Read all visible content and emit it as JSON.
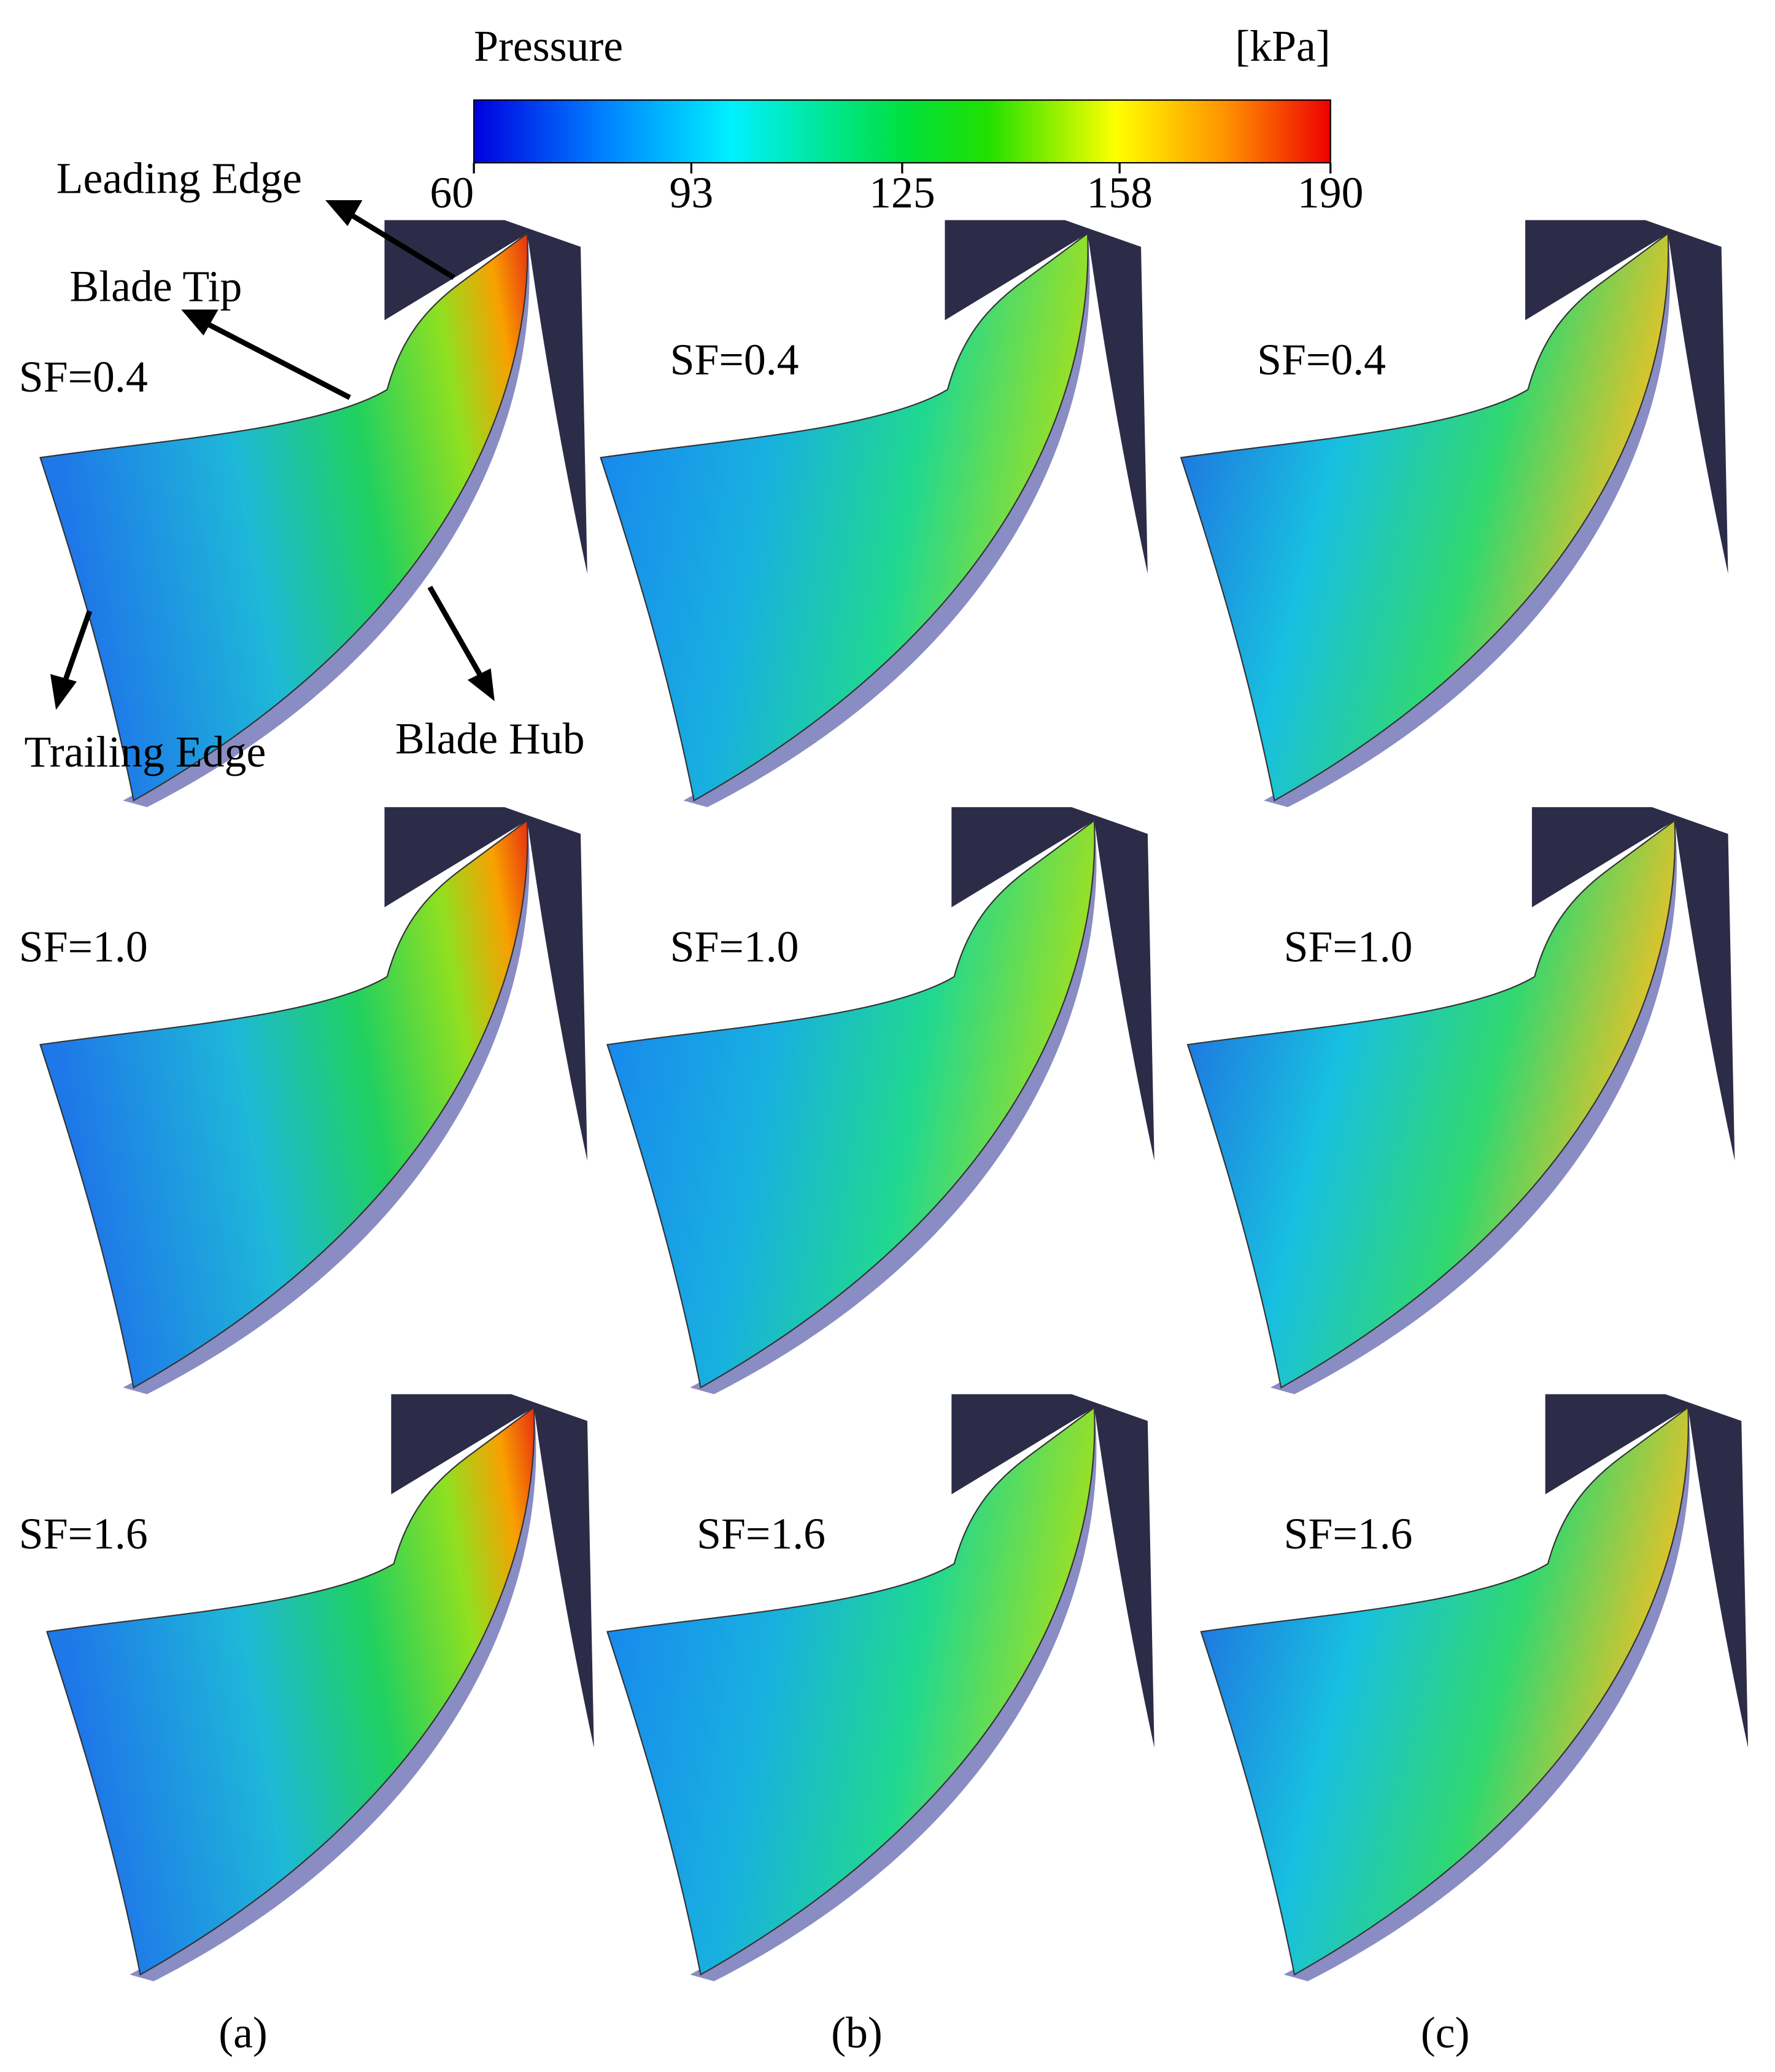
{
  "colorbar": {
    "title": "Pressure",
    "unit": "[kPa]",
    "range": [
      60,
      190
    ],
    "ticks": [
      60,
      93,
      125,
      158,
      190
    ]
  },
  "annotations": {
    "leading_edge": "Leading Edge",
    "blade_tip": "Blade Tip",
    "trailing_edge": "Trailing Edge",
    "blade_hub": "Blade Hub"
  },
  "rows": [
    "SF=0.4",
    "SF=1.0",
    "SF=1.6"
  ],
  "columns": [
    "(a)",
    "(b)",
    "(c)"
  ]
}
